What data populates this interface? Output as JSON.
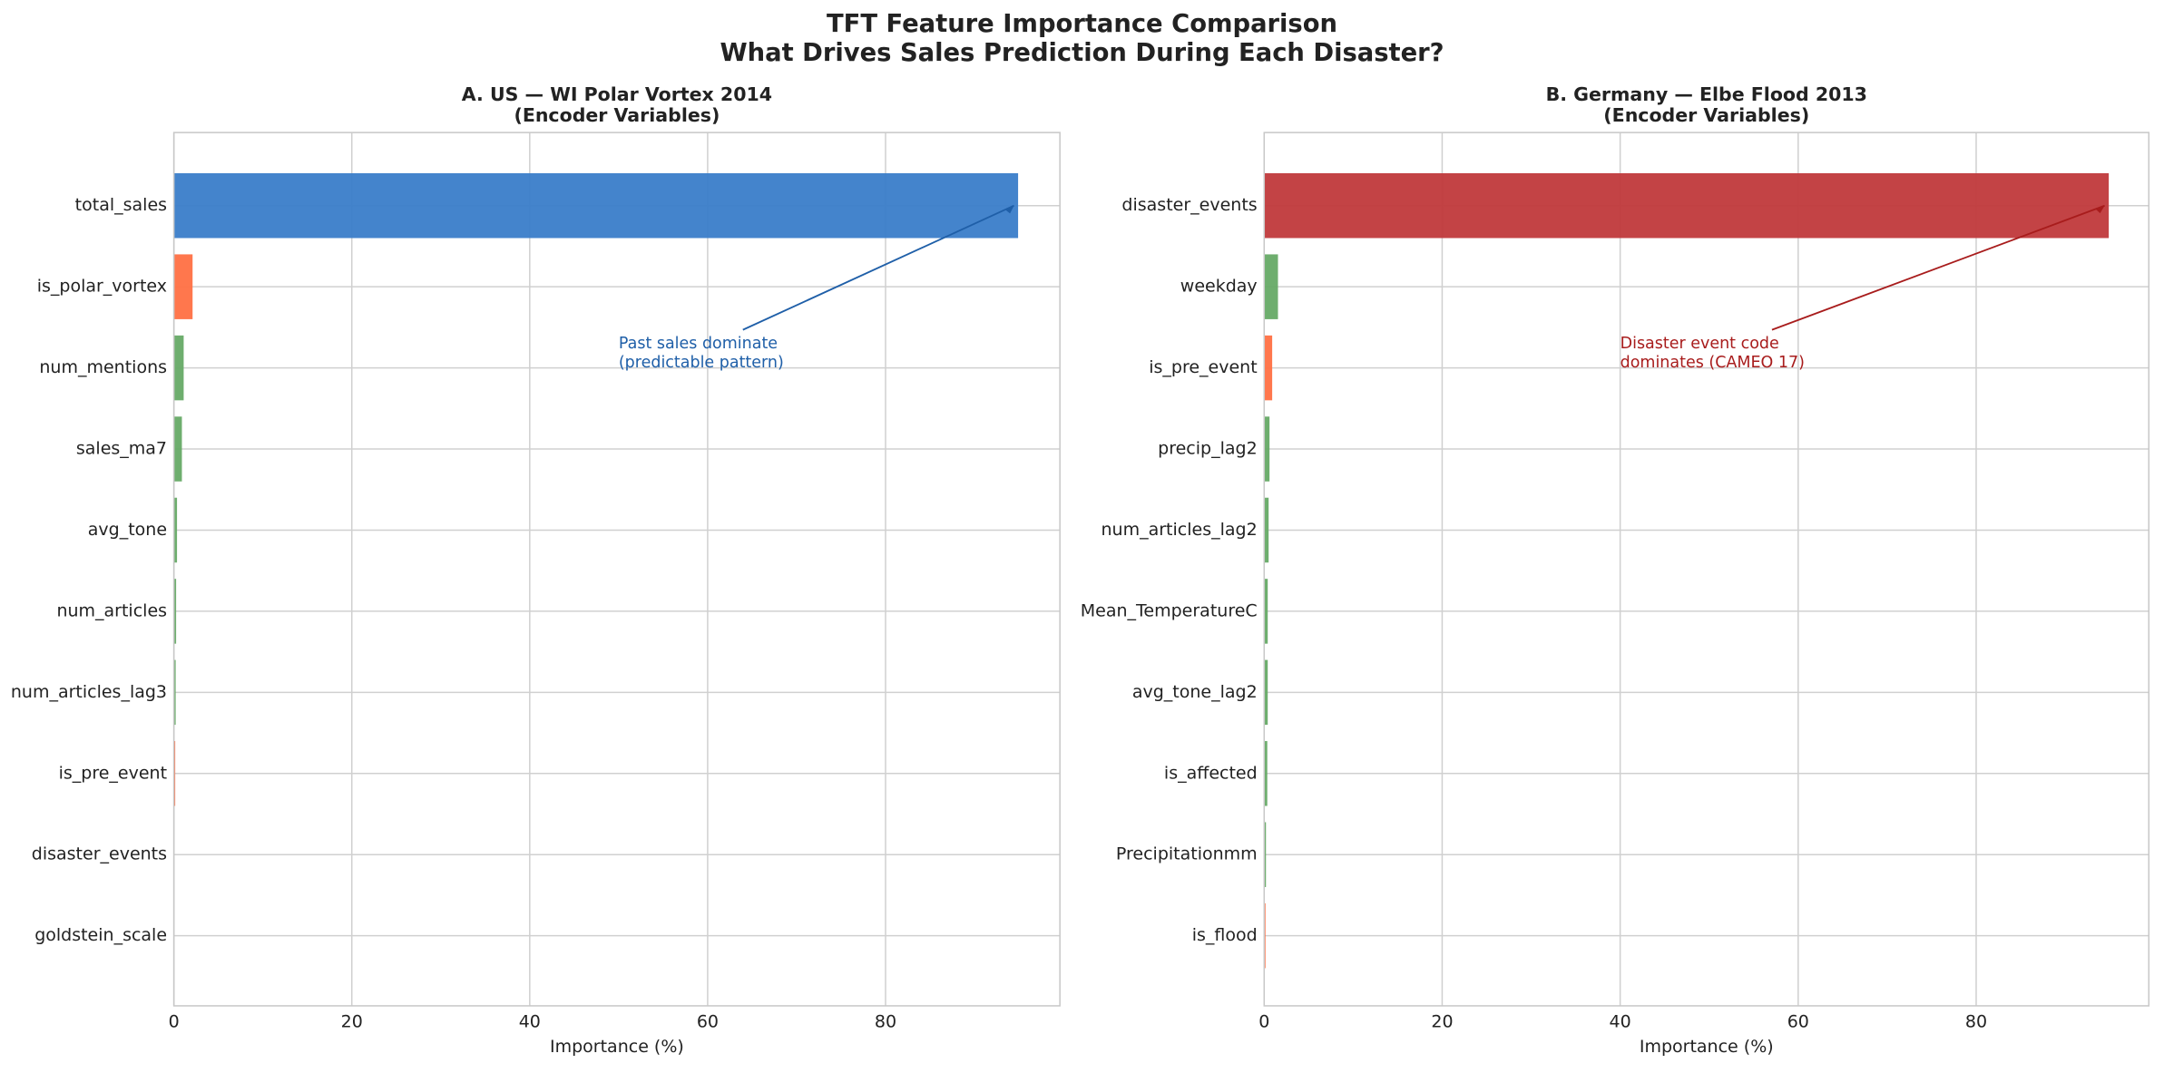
{
  "title_lines": [
    "TFT Feature Importance Comparison",
    "What Drives Sales Prediction During Each Disaster?"
  ],
  "chart_data": [
    {
      "type": "bar",
      "orientation": "horizontal",
      "title_lines": [
        "A. US — WI Polar Vortex 2014",
        "(Encoder Variables)"
      ],
      "x_label": "Importance (%)",
      "categories": [
        "total_sales",
        "is_polar_vortex",
        "num_mentions",
        "sales_ma7",
        "avg_tone",
        "num_articles",
        "num_articles_lag3",
        "is_pre_event",
        "disaster_events",
        "goldstein_scale"
      ],
      "values": [
        94.9,
        2.1,
        1.1,
        0.9,
        0.35,
        0.25,
        0.2,
        0.15,
        0,
        0
      ],
      "colors": [
        "#3a7dc9",
        "#ff7043",
        "#66aa66",
        "#66aa66",
        "#66aa66",
        "#66aa66",
        "#66aa66",
        "#ff7043",
        "#66aa66",
        "#66aa66"
      ],
      "xlim": [
        0,
        99.6
      ],
      "xticks": [
        0,
        20,
        40,
        60,
        80
      ],
      "grid": true,
      "annotation": {
        "lines": [
          "Past sales dominate",
          "(predictable pattern)"
        ],
        "color": "#1f5fa8"
      }
    },
    {
      "type": "bar",
      "orientation": "horizontal",
      "title_lines": [
        "B. Germany — Elbe Flood 2013",
        "(Encoder Variables)"
      ],
      "x_label": "Importance (%)",
      "categories": [
        "disaster_events",
        "weekday",
        "is_pre_event",
        "precip_lag2",
        "num_articles_lag2",
        "Mean_TemperatureC",
        "avg_tone_lag2",
        "is_affected",
        "Precipitationmm",
        "is_flood"
      ],
      "values": [
        94.9,
        1.55,
        0.9,
        0.6,
        0.5,
        0.4,
        0.4,
        0.35,
        0.2,
        0.15
      ],
      "colors": [
        "#c0393b",
        "#66aa66",
        "#ff7043",
        "#66aa66",
        "#66aa66",
        "#66aa66",
        "#66aa66",
        "#66aa66",
        "#66aa66",
        "#ff7043"
      ],
      "xlim": [
        0,
        99.4
      ],
      "xticks": [
        0,
        20,
        40,
        60,
        80
      ],
      "grid": true,
      "annotation": {
        "lines": [
          "Disaster event code",
          "dominates (CAMEO 17)"
        ],
        "color": "#a81c1c"
      }
    }
  ]
}
